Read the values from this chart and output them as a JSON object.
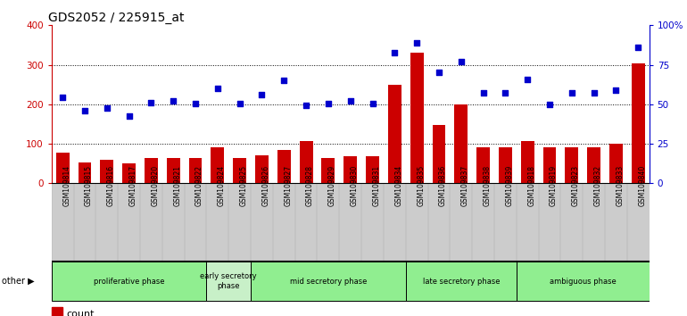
{
  "title": "GDS2052 / 225915_at",
  "samples": [
    "GSM109814",
    "GSM109815",
    "GSM109816",
    "GSM109817",
    "GSM109820",
    "GSM109821",
    "GSM109822",
    "GSM109824",
    "GSM109825",
    "GSM109826",
    "GSM109827",
    "GSM109828",
    "GSM109829",
    "GSM109830",
    "GSM109831",
    "GSM109834",
    "GSM109835",
    "GSM109836",
    "GSM109837",
    "GSM109838",
    "GSM109839",
    "GSM109818",
    "GSM109819",
    "GSM109823",
    "GSM109832",
    "GSM109833",
    "GSM109840"
  ],
  "counts": [
    78,
    53,
    60,
    50,
    65,
    65,
    65,
    90,
    65,
    70,
    85,
    108,
    65,
    68,
    68,
    250,
    330,
    148,
    200,
    92,
    92,
    108,
    90,
    90,
    90,
    100,
    303
  ],
  "percentile": [
    218,
    183,
    190,
    170,
    205,
    208,
    202,
    240,
    202,
    225,
    260,
    197,
    202,
    208,
    202,
    330,
    355,
    280,
    308,
    230,
    228,
    262,
    200,
    230,
    230,
    235,
    345
  ],
  "phases": [
    {
      "label": "proliferative phase",
      "start": 0,
      "end": 7,
      "color": "#90ee90"
    },
    {
      "label": "early secretory\nphase",
      "start": 7,
      "end": 9,
      "color": "#c8f0c8"
    },
    {
      "label": "mid secretory phase",
      "start": 9,
      "end": 16,
      "color": "#90ee90"
    },
    {
      "label": "late secretory phase",
      "start": 16,
      "end": 21,
      "color": "#90ee90"
    },
    {
      "label": "ambiguous phase",
      "start": 21,
      "end": 27,
      "color": "#90ee90"
    }
  ],
  "ylim_left": [
    0,
    400
  ],
  "bar_color": "#cc0000",
  "dot_color": "#0000cc",
  "yticks_left": [
    0,
    100,
    200,
    300,
    400
  ],
  "yticks_right_labels": [
    "0",
    "25",
    "50",
    "75",
    "100%"
  ],
  "title_fontsize": 10
}
